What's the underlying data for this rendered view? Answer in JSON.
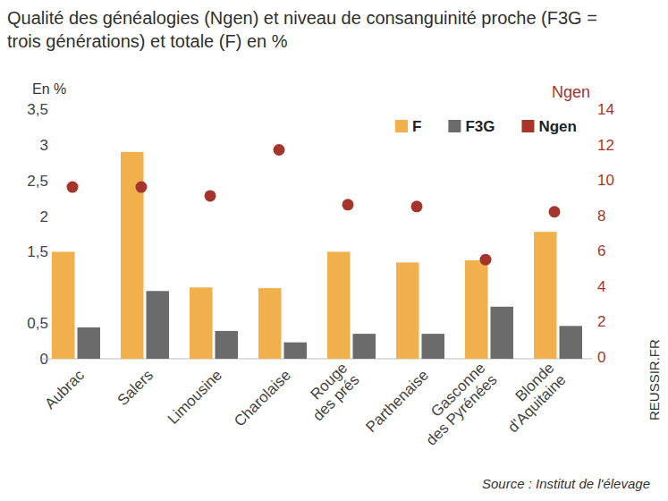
{
  "chart_data": {
    "type": "bar",
    "title": "Qualité des généalogies (Ngen) et niveau de consanguinité proche (F3G = trois générations) et totale (F) en %",
    "ylabel": "En %",
    "y2label": "Ngen",
    "annotations": [
      "Source : Institut de l'élevage",
      "REUSSIR.FR"
    ],
    "categories": [
      "Aubrac",
      "Salers",
      "Limousine",
      "Charolaise",
      "Rouge des prés",
      "Parthenaise",
      "Gasconne des Pyrénées",
      "Blonde d'Aquitaine"
    ],
    "series": [
      {
        "name": "F",
        "type": "bar",
        "color": "#f1b04c",
        "values": [
          1.5,
          2.9,
          1.0,
          0.99,
          1.5,
          1.35,
          1.38,
          1.78
        ]
      },
      {
        "name": "F3G",
        "type": "bar",
        "color": "#6b6b6b",
        "values": [
          0.44,
          0.95,
          0.39,
          0.23,
          0.35,
          0.35,
          0.73,
          0.46
        ]
      },
      {
        "name": "Ngen",
        "type": "scatter",
        "axis": "y2",
        "color": "#a5352b",
        "marker": "circle",
        "values": [
          9.6,
          9.6,
          9.1,
          11.7,
          8.6,
          8.5,
          5.5,
          8.2
        ]
      }
    ],
    "ylim": [
      0,
      3.5
    ],
    "yticks": [
      0,
      {
        "value": 0.5,
        "label": "0,5"
      },
      {
        "value": 1.5,
        "label": "1,5"
      },
      2,
      {
        "value": 2.5,
        "label": "2,5"
      },
      3,
      {
        "value": 3.5,
        "label": "3,5"
      }
    ],
    "y2lim": [
      0,
      14
    ],
    "y2ticks": [
      0,
      2,
      4,
      6,
      8,
      10,
      12,
      14
    ],
    "grid": false,
    "legend": "top-right"
  }
}
